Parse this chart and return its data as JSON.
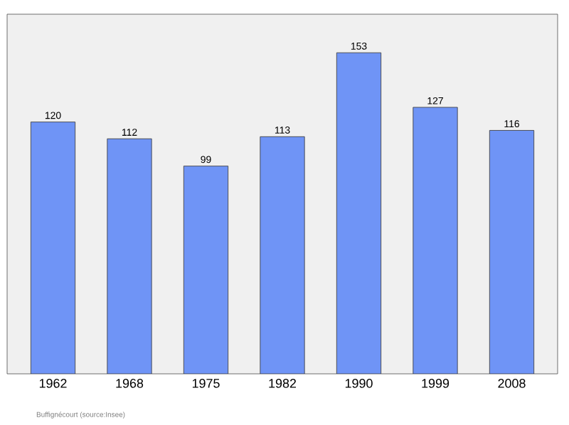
{
  "chart_data": {
    "type": "bar",
    "categories": [
      "1962",
      "1968",
      "1975",
      "1982",
      "1990",
      "1999",
      "2008"
    ],
    "values": [
      120,
      112,
      99,
      113,
      153,
      127,
      116
    ],
    "color": "#6f94f6",
    "data_labels": true,
    "annotations": [
      "Buffignécourt   (source:Insee)"
    ]
  }
}
